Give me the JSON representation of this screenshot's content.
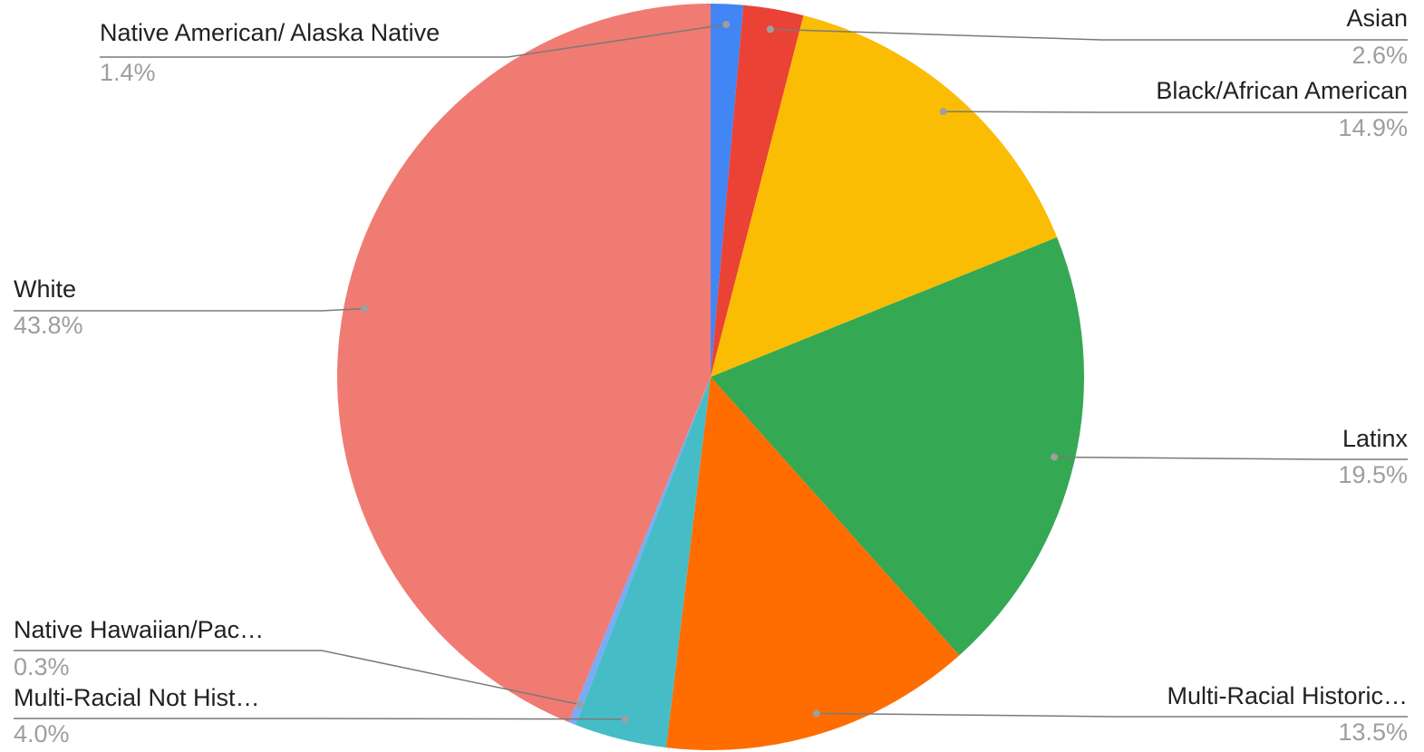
{
  "chart_data": {
    "type": "pie",
    "categories": [
      "Native American/ Alaska Native",
      "Asian",
      "Black/African American",
      "Latinx",
      "Multi-Racial Historic…",
      "Multi-Racial Not Hist…",
      "Native Hawaiian/Pac…",
      "White"
    ],
    "values": [
      1.4,
      2.6,
      14.9,
      19.5,
      13.5,
      4.0,
      0.3,
      43.8
    ],
    "value_labels": [
      "1.4%",
      "2.6%",
      "14.9%",
      "19.5%",
      "13.5%",
      "4.0%",
      "0.3%",
      "43.8%"
    ],
    "colors": [
      "#4285f4",
      "#ea4335",
      "#fbbc04",
      "#34a853",
      "#ff6d01",
      "#46bdc6",
      "#7baaf7",
      "#f07b72"
    ]
  }
}
